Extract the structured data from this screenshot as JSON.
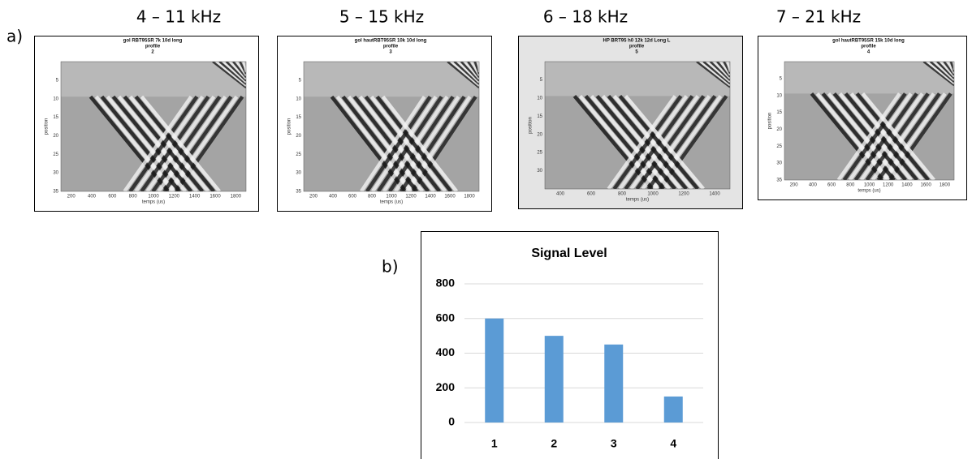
{
  "panel_a": {
    "label": "a)",
    "panels": [
      {
        "frequency": "4 – 11 kHz",
        "title": [
          "gol RBT95SR 7k  10d  long",
          "profile",
          "2"
        ],
        "ylabel": "position",
        "xlabel": "temps (us)",
        "yticks": [
          5,
          10,
          15,
          20,
          25,
          30,
          35
        ],
        "xticks": [
          200,
          400,
          600,
          800,
          1000,
          1200,
          1400,
          1600,
          1800
        ]
      },
      {
        "frequency": "5 – 15 kHz",
        "title": [
          "gol hautRBT95SR 10k  10d  long",
          "profile",
          "3"
        ],
        "ylabel": "position",
        "xlabel": "temps (us)",
        "yticks": [
          5,
          10,
          15,
          20,
          25,
          30,
          35
        ],
        "xticks": [
          200,
          400,
          600,
          800,
          1000,
          1200,
          1400,
          1600,
          1800
        ]
      },
      {
        "frequency": "6 – 18 kHz",
        "title": [
          "HP BRT95 h0 12k 12d Long L",
          "profile",
          "5"
        ],
        "ylabel": "position",
        "xlabel": "temps (us)",
        "yticks": [
          5,
          10,
          15,
          20,
          25,
          30
        ],
        "xticks": [
          400,
          600,
          800,
          1000,
          1200,
          1400
        ]
      },
      {
        "frequency": "7 – 21 kHz",
        "title": [
          "gol hautRBT95SR 15k  10d  long",
          "profile",
          "4"
        ],
        "ylabel": "position",
        "xlabel": "temps (us)",
        "yticks": [
          5,
          10,
          15,
          20,
          25,
          30,
          35
        ],
        "xticks": [
          200,
          400,
          600,
          800,
          1000,
          1200,
          1400,
          1600,
          1800
        ]
      }
    ]
  },
  "panel_b": {
    "label": "b)"
  },
  "chart_data": {
    "type": "bar",
    "title": "Signal Level",
    "categories": [
      "1",
      "2",
      "3",
      "4"
    ],
    "values": [
      600,
      500,
      450,
      150
    ],
    "color": "#5b9bd5",
    "ylim": [
      0,
      800
    ],
    "yticks": [
      0,
      200,
      400,
      600,
      800
    ],
    "grid": true
  }
}
